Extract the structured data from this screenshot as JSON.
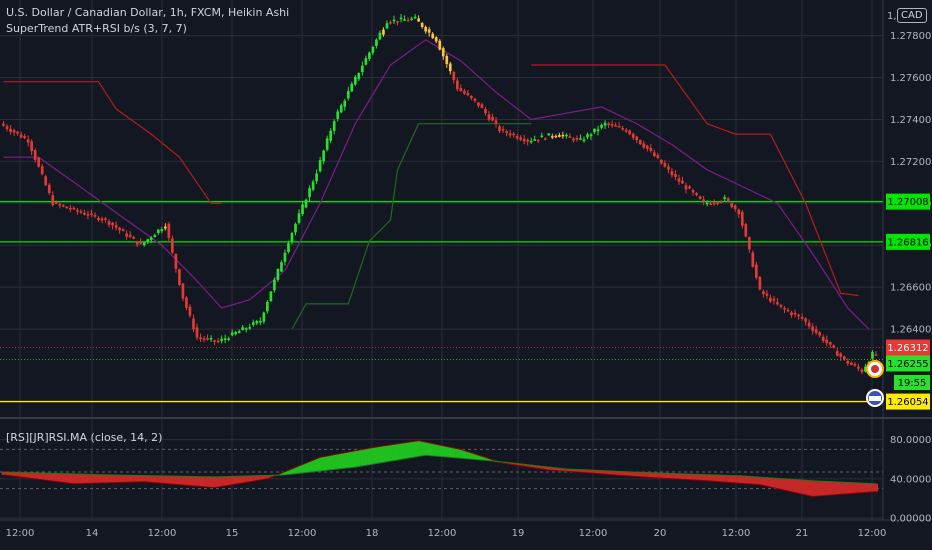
{
  "header": {
    "symbol_line": "U.S. Dollar / Canadian Dollar, 1h, FXCM, Heikin Ashi",
    "indicator_line": "SuperTrend ATR+RSI b/s (3, 7, 7)",
    "currency": "CAD",
    "currency_prefix": "1,"
  },
  "oscillator": {
    "title": "[RS][JR]RSI.MA (close, 14, 2)"
  },
  "colors": {
    "background": "#131722",
    "grid": "#2a2e39",
    "up": "#26e22a",
    "down": "#e53935",
    "warn": "#ffc23b",
    "resistance_line": "#b71c1c",
    "support_line": "#1e6b1e",
    "ma_line": "#7b1f8a",
    "green_hline": "#00e600",
    "yellow_hline": "#ffeb00"
  },
  "chart_data": [
    {
      "type": "candlestick",
      "style": "Heikin Ashi",
      "x_tick_labels": [
        "12:00",
        "14",
        "12:00",
        "15",
        "12:00",
        "18",
        "12:00",
        "19",
        "12:00",
        "20",
        "12:00",
        "21",
        "12:00"
      ],
      "y_tick_labels": [
        "1.27800",
        "1.27600",
        "1.27400",
        "1.27200",
        "1.27000",
        "1.26800",
        "1.26600",
        "1.26400"
      ],
      "ylim": [
        1.2599,
        1.2797
      ],
      "horizontal_lines": [
        {
          "value": 1.27008,
          "label": "1.27008",
          "color": "#00e600"
        },
        {
          "value": 1.26816,
          "label": "1.26816",
          "color": "#00e600"
        },
        {
          "value": 1.26054,
          "label": "1.26054",
          "color": "#ffeb00"
        }
      ],
      "price_labels": [
        {
          "value": 1.26312,
          "label": "1.26312",
          "color": "#e53935"
        },
        {
          "value": 1.26255,
          "label": "1.26255",
          "color": "#26e22a"
        }
      ],
      "countdown": "19:55",
      "candle_trend_points": [
        [
          0,
          1.2738
        ],
        [
          8,
          1.273
        ],
        [
          15,
          1.27
        ],
        [
          30,
          1.2692
        ],
        [
          40,
          1.268
        ],
        [
          47,
          1.269
        ],
        [
          52,
          1.2655
        ],
        [
          56,
          1.2636
        ],
        [
          62,
          1.2634
        ],
        [
          74,
          1.2644
        ],
        [
          82,
          1.2682
        ],
        [
          90,
          1.2715
        ],
        [
          95,
          1.274
        ],
        [
          103,
          1.2766
        ],
        [
          110,
          1.2787
        ],
        [
          118,
          1.2788
        ],
        [
          124,
          1.2778
        ],
        [
          130,
          1.2755
        ],
        [
          136,
          1.2747
        ],
        [
          142,
          1.2735
        ],
        [
          150,
          1.273
        ],
        [
          158,
          1.2733
        ],
        [
          165,
          1.273
        ],
        [
          172,
          1.2738
        ],
        [
          178,
          1.2735
        ],
        [
          184,
          1.2726
        ],
        [
          192,
          1.2712
        ],
        [
          200,
          1.27
        ],
        [
          206,
          1.2702
        ],
        [
          210,
          1.2696
        ],
        [
          216,
          1.2658
        ],
        [
          222,
          1.265
        ],
        [
          228,
          1.2645
        ],
        [
          234,
          1.2635
        ],
        [
          240,
          1.2625
        ],
        [
          245,
          1.262
        ],
        [
          248,
          1.2628
        ]
      ],
      "supertrend_resistance": [
        [
          0,
          1.2758
        ],
        [
          27,
          1.2758
        ],
        [
          32,
          1.2745
        ],
        [
          42,
          1.2733
        ],
        [
          50,
          1.2722
        ],
        [
          59,
          1.27
        ],
        [
          62,
          1.27
        ],
        [
          150,
          1.2766
        ],
        [
          188,
          1.2766
        ],
        [
          200,
          1.2738
        ],
        [
          208,
          1.2733
        ],
        [
          218,
          1.2733
        ],
        [
          228,
          1.27
        ],
        [
          238,
          1.2657
        ],
        [
          243,
          1.2656
        ]
      ],
      "supertrend_support": [
        [
          82,
          1.264
        ],
        [
          86,
          1.2652
        ],
        [
          98,
          1.2652
        ],
        [
          104,
          1.2682
        ],
        [
          110,
          1.2692
        ],
        [
          112,
          1.2716
        ],
        [
          118,
          1.2738
        ],
        [
          150,
          1.2738
        ]
      ],
      "moving_average": [
        [
          0,
          1.2722
        ],
        [
          10,
          1.2722
        ],
        [
          20,
          1.271
        ],
        [
          35,
          1.2692
        ],
        [
          45,
          1.268
        ],
        [
          55,
          1.2663
        ],
        [
          62,
          1.265
        ],
        [
          70,
          1.2654
        ],
        [
          80,
          1.2668
        ],
        [
          90,
          1.27
        ],
        [
          100,
          1.2738
        ],
        [
          110,
          1.2766
        ],
        [
          120,
          1.2778
        ],
        [
          130,
          1.2768
        ],
        [
          140,
          1.2753
        ],
        [
          150,
          1.274
        ],
        [
          160,
          1.2743
        ],
        [
          170,
          1.2746
        ],
        [
          180,
          1.2738
        ],
        [
          190,
          1.2728
        ],
        [
          200,
          1.2716
        ],
        [
          210,
          1.2708
        ],
        [
          220,
          1.27
        ],
        [
          230,
          1.2676
        ],
        [
          240,
          1.265
        ],
        [
          246,
          1.264
        ]
      ]
    },
    {
      "type": "area",
      "title": "[RS][JR]RSI.MA (close, 14, 2)",
      "y_tick_labels": [
        "80.00000",
        "40.00000",
        "0.00000"
      ],
      "ylim": [
        -2,
        100
      ],
      "reference_levels": [
        70,
        47,
        30
      ],
      "rsi_points": [
        [
          0,
          44
        ],
        [
          20,
          35
        ],
        [
          40,
          37
        ],
        [
          60,
          31
        ],
        [
          75,
          40
        ],
        [
          90,
          62
        ],
        [
          105,
          72
        ],
        [
          118,
          79
        ],
        [
          130,
          70
        ],
        [
          142,
          56
        ],
        [
          155,
          49
        ],
        [
          170,
          45
        ],
        [
          185,
          41
        ],
        [
          200,
          38
        ],
        [
          215,
          34
        ],
        [
          230,
          22
        ],
        [
          248,
          27
        ]
      ],
      "ma_points": [
        [
          0,
          47
        ],
        [
          30,
          44
        ],
        [
          60,
          42
        ],
        [
          80,
          44
        ],
        [
          100,
          52
        ],
        [
          120,
          64
        ],
        [
          140,
          58
        ],
        [
          160,
          50
        ],
        [
          185,
          46
        ],
        [
          210,
          43
        ],
        [
          230,
          38
        ],
        [
          248,
          35
        ]
      ]
    }
  ]
}
